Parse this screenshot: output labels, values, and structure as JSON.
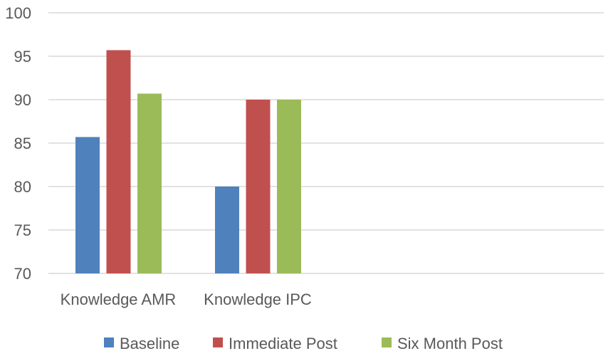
{
  "chart_data": {
    "type": "bar",
    "title": "",
    "xlabel": "",
    "ylabel": "",
    "categories": [
      "Knowledge AMR",
      "Knowledge IPC"
    ],
    "series": [
      {
        "name": "Baseline",
        "color": "#4f81bd",
        "values": [
          85.7,
          80.0
        ]
      },
      {
        "name": "Immediate Post",
        "color": "#c0504d",
        "values": [
          95.7,
          90.0
        ]
      },
      {
        "name": "Six Month Post",
        "color": "#9bbb59",
        "values": [
          90.7,
          90.0
        ]
      }
    ],
    "ylim": [
      70,
      100
    ],
    "yticks": [
      70,
      75,
      80,
      85,
      90,
      95,
      100
    ],
    "grid": true,
    "legend_position": "bottom"
  }
}
